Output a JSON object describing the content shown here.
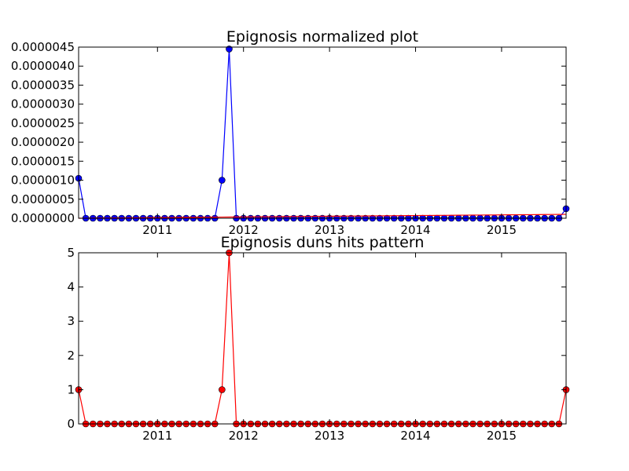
{
  "chart_data": [
    {
      "type": "line",
      "title": "Epignosis normalized plot",
      "xlabel": "",
      "ylabel": "",
      "x_axis": "monthly dates",
      "xlim": [
        "2010-02",
        "2015-10"
      ],
      "ylim": [
        0,
        4.5e-06
      ],
      "x_ticks": [
        2011,
        2012,
        2013,
        2014,
        2015
      ],
      "y_ticks": [
        "0.0000000",
        "0.0000005",
        "0.0000010",
        "0.0000015",
        "0.0000020",
        "0.0000025",
        "0.0000030",
        "0.0000035",
        "0.0000040",
        "0.0000045"
      ],
      "grid": false,
      "legend": "none",
      "series": [
        {
          "color": "#0000ff",
          "marker": "circle",
          "values": [
            1.05e-06,
            0,
            0,
            0,
            0,
            0,
            0,
            0,
            0,
            0,
            0,
            0,
            0,
            0,
            0,
            0,
            0,
            0,
            0,
            0,
            1e-06,
            4.45e-06,
            0,
            0,
            0,
            0,
            0,
            0,
            0,
            0,
            0,
            0,
            0,
            0,
            0,
            0,
            0,
            0,
            0,
            0,
            0,
            0,
            0,
            0,
            0,
            0,
            0,
            0,
            0,
            0,
            0,
            0,
            0,
            0,
            0,
            0,
            0,
            0,
            0,
            0,
            0,
            0,
            0,
            0,
            0,
            0,
            0,
            0,
            2.5e-07
          ]
        },
        {
          "color": "#ff0000",
          "marker": "none",
          "values": [
            0.0,
            1.5e-09,
            3e-09,
            4.5e-09,
            6e-09,
            7.5e-09,
            9e-09,
            1.05e-08,
            1.2e-08,
            1.35e-08,
            1.5e-08,
            1.65e-08,
            1.8e-08,
            1.95e-08,
            2.1e-08,
            2.25e-08,
            2.4e-08,
            2.55e-08,
            2.7e-08,
            2.85e-08,
            3e-08,
            3.15e-08,
            3.3e-08,
            3.45e-08,
            3.6e-08,
            3.75e-08,
            3.9e-08,
            4.05e-08,
            4.2e-08,
            4.35e-08,
            4.5e-08,
            4.65e-08,
            4.8e-08,
            4.95e-08,
            5.1e-08,
            5.25e-08,
            5.4e-08,
            5.55e-08,
            5.7e-08,
            5.85e-08,
            6e-08,
            6.15e-08,
            6.3e-08,
            6.45e-08,
            6.6e-08,
            6.75e-08,
            6.9e-08,
            7.05e-08,
            7.2e-08,
            7.35e-08,
            7.5e-08,
            7.65e-08,
            7.8e-08,
            7.95e-08,
            8.1e-08,
            8.25e-08,
            8.4e-08,
            8.55e-08,
            8.7e-08,
            8.85e-08,
            9e-08,
            9.15e-08,
            9.3e-08,
            9.45e-08,
            9.6e-08,
            9.75e-08,
            9.9e-08,
            1.005e-07,
            1.02e-07
          ]
        }
      ]
    },
    {
      "type": "line",
      "title": "Epignosis duns hits pattern",
      "xlabel": "",
      "ylabel": "",
      "x_axis": "monthly dates",
      "xlim": [
        "2010-02",
        "2015-10"
      ],
      "ylim": [
        0,
        5
      ],
      "x_ticks": [
        2011,
        2012,
        2013,
        2014,
        2015
      ],
      "y_ticks": [
        "0",
        "1",
        "2",
        "3",
        "4",
        "5"
      ],
      "grid": false,
      "legend": "none",
      "series": [
        {
          "color": "#ff0000",
          "marker": "circle",
          "values": [
            1,
            0,
            0,
            0,
            0,
            0,
            0,
            0,
            0,
            0,
            0,
            0,
            0,
            0,
            0,
            0,
            0,
            0,
            0,
            0,
            1,
            5,
            0,
            0,
            0,
            0,
            0,
            0,
            0,
            0,
            0,
            0,
            0,
            0,
            0,
            0,
            0,
            0,
            0,
            0,
            0,
            0,
            0,
            0,
            0,
            0,
            0,
            0,
            0,
            0,
            0,
            0,
            0,
            0,
            0,
            0,
            0,
            0,
            0,
            0,
            0,
            0,
            0,
            0,
            0,
            0,
            0,
            0,
            1
          ]
        }
      ]
    }
  ]
}
